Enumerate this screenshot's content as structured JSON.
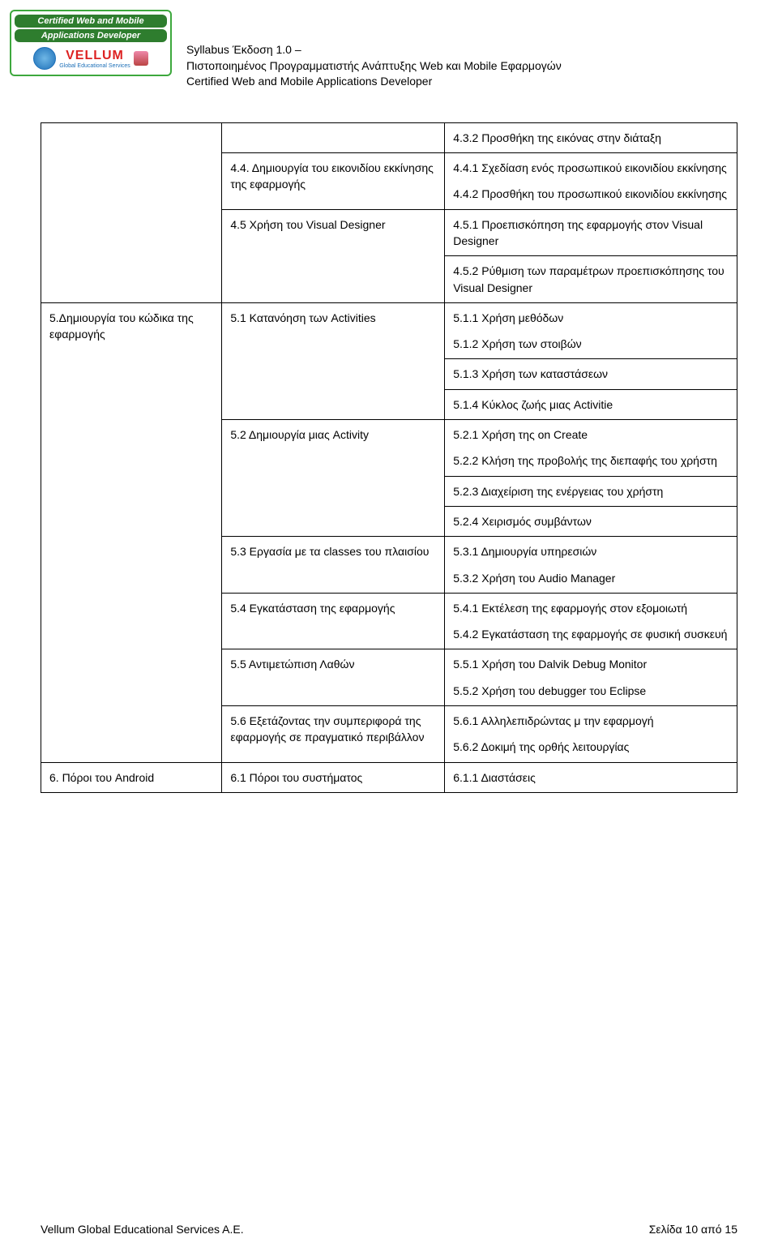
{
  "badge": {
    "line1": "Certified Web and Mobile",
    "line2": "Applications Developer",
    "brand": "VELLUM",
    "brand_sub": "Global Educational Services"
  },
  "header": {
    "line1": "Syllabus Έκδοση 1.0 –",
    "line2": "Πιστοποιημένος Προγραμματιστής Ανάπτυξης Web και Mobile Εφαρμογών",
    "line3": "Certified Web and Mobile Applications Developer"
  },
  "table": {
    "rows": [
      {
        "c1": "",
        "c2": "",
        "c3": "4.3.2 Προσθήκη της εικόνας στην διάταξη"
      },
      {
        "c1": "",
        "c2": "4.4. Δημιουργία του εικονιδίου εκκίνησης της εφαρμογής",
        "c3a": "4.4.1 Σχεδίαση ενός προσωπικού εικονιδίου εκκίνησης",
        "c3b": "4.4.2 Προσθήκη του προσωπικού εικονιδίου εκκίνησης"
      },
      {
        "c1": "",
        "c2": "4.5 Χρήση του Visual Designer",
        "c3": "4.5.1 Προεπισκόπηση της εφαρμογής στον Visual Designer"
      },
      {
        "c1": "",
        "c2": "",
        "c3": "4.5.2 Ρύθμιση των παραμέτρων προεπισκόπησης του Visual Designer"
      },
      {
        "c1": "5.Δημιουργία του κώδικα της εφαρμογής",
        "c2": "5.1 Κατανόηση των Activities",
        "c3a": "5.1.1 Χρήση μεθόδων",
        "c3b": "5.1.2 Χρήση των στοιβών"
      },
      {
        "c1": "",
        "c2": "",
        "c3": "5.1.3 Χρήση των καταστάσεων"
      },
      {
        "c1": "",
        "c2": "",
        "c3": "5.1.4 Κύκλος ζωής μιας Activitie"
      },
      {
        "c1": "",
        "c2": "5.2 Δημιουργία μιας Activity",
        "c3a": "5.2.1 Χρήση της on Create",
        "c3b": "5.2.2 Κλήση της προβολής της διεπαφής του χρήστη"
      },
      {
        "c1": "",
        "c2": "",
        "c3": "5.2.3 Διαχείριση της ενέργειας του χρήστη"
      },
      {
        "c1": "",
        "c2": "",
        "c3": "5.2.4 Χειρισμός συμβάντων"
      },
      {
        "c1": "",
        "c2": "5.3 Εργασία με τα classes του πλαισίου",
        "c3a": "5.3.1 Δημιουργία υπηρεσιών",
        "c3b": "5.3.2 Χρήση του Audio Manager"
      },
      {
        "c1": "",
        "c2": "5.4 Εγκατάσταση της εφαρμογής",
        "c3a": "5.4.1 Εκτέλεση της εφαρμογής στον εξομοιωτή",
        "c3b": "5.4.2 Εγκατάσταση της εφαρμογής σε φυσική συσκευή"
      },
      {
        "c1": "",
        "c2": "5.5 Αντιμετώπιση Λαθών",
        "c3a": "5.5.1 Χρήση του Dalvik Debug Monitor",
        "c3b": "5.5.2 Χρήση του debugger του Eclipse"
      },
      {
        "c1": "",
        "c2": "5.6 Εξετάζοντας την συμπεριφορά της εφαρμογής σε πραγματικό περιβάλλον",
        "c3a": "5.6.1 Αλληλεπιδρώντας μ την εφαρμογή",
        "c3b": "5.6.2 Δοκιμή της ορθής λειτουργίας"
      },
      {
        "c1": "6. Πόροι του Android",
        "c2": "6.1 Πόροι του συστήματος",
        "c3": "6.1.1 Διαστάσεις"
      }
    ]
  },
  "footer": {
    "left": "Vellum Global Educational Services A.E.",
    "right": "Σελίδα 10 από 15"
  }
}
